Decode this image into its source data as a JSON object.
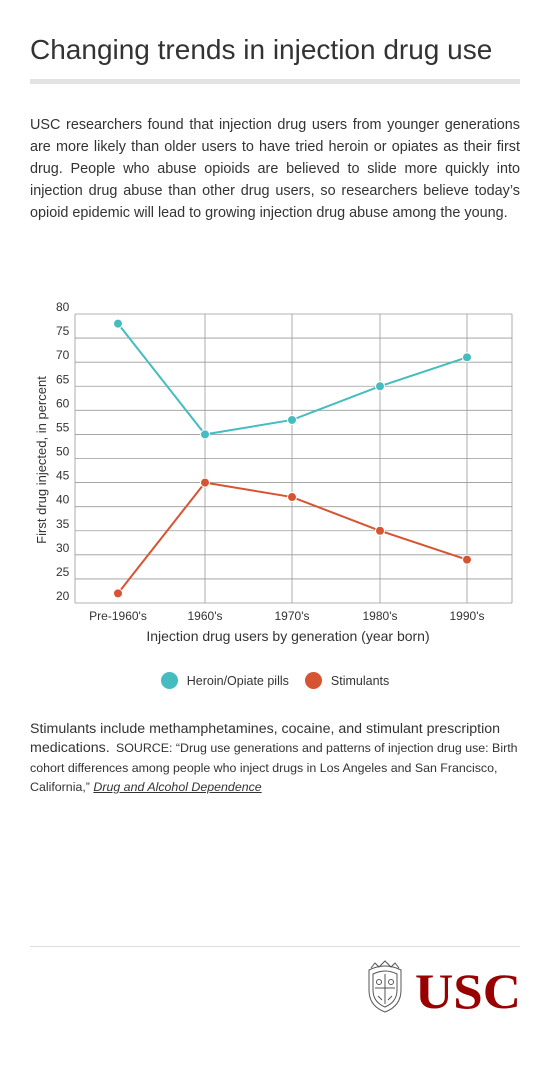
{
  "title": "Changing trends in injection drug use",
  "intro": "USC researchers found that injection drug users from younger generations are more likely than older users to have tried heroin or opiates as their first drug. People who abuse opioids are believed to slide more quickly into injection drug abuse than other drug users, so researchers believe today’s opioid epidemic will lead to growing injection drug abuse among the young.",
  "colors": {
    "heroin": "#45bcc0",
    "stimulants": "#d65432",
    "grid": "#9a9a9a",
    "usc_red": "#990000"
  },
  "chart_data": {
    "type": "line",
    "categories": [
      "Pre-1960's",
      "1960's",
      "1970's",
      "1980's",
      "1990's"
    ],
    "series": [
      {
        "name": "Heroin/Opiate pills",
        "values": [
          78,
          55,
          58,
          65,
          71
        ],
        "color": "#45bcc0"
      },
      {
        "name": "Stimulants",
        "values": [
          22,
          45,
          42,
          35,
          29
        ],
        "color": "#d65432"
      }
    ],
    "yticks": [
      20,
      25,
      30,
      35,
      40,
      45,
      50,
      55,
      60,
      65,
      70,
      75,
      80
    ],
    "ylim": [
      20,
      80
    ],
    "xlabel": "Injection drug users by generation (year born)",
    "ylabel": "First drug injected, in percent",
    "grid": true,
    "legend_position": "bottom-center"
  },
  "legend": {
    "heroin_label": "Heroin/Opiate pills",
    "stimulants_label": "Stimulants"
  },
  "note": "Stimulants include methamphetamines, cocaine, and stimulant prescription medications.",
  "source": {
    "text": "SOURCE: “Drug use generations and patterns of injection drug use: Birth cohort differences among people who inject drugs in Los Angeles and San Francisco, California,”",
    "journal": "Drug and Alcohol Dependence"
  },
  "logo": {
    "text": "USC",
    "icon": "usc-seal-icon"
  }
}
